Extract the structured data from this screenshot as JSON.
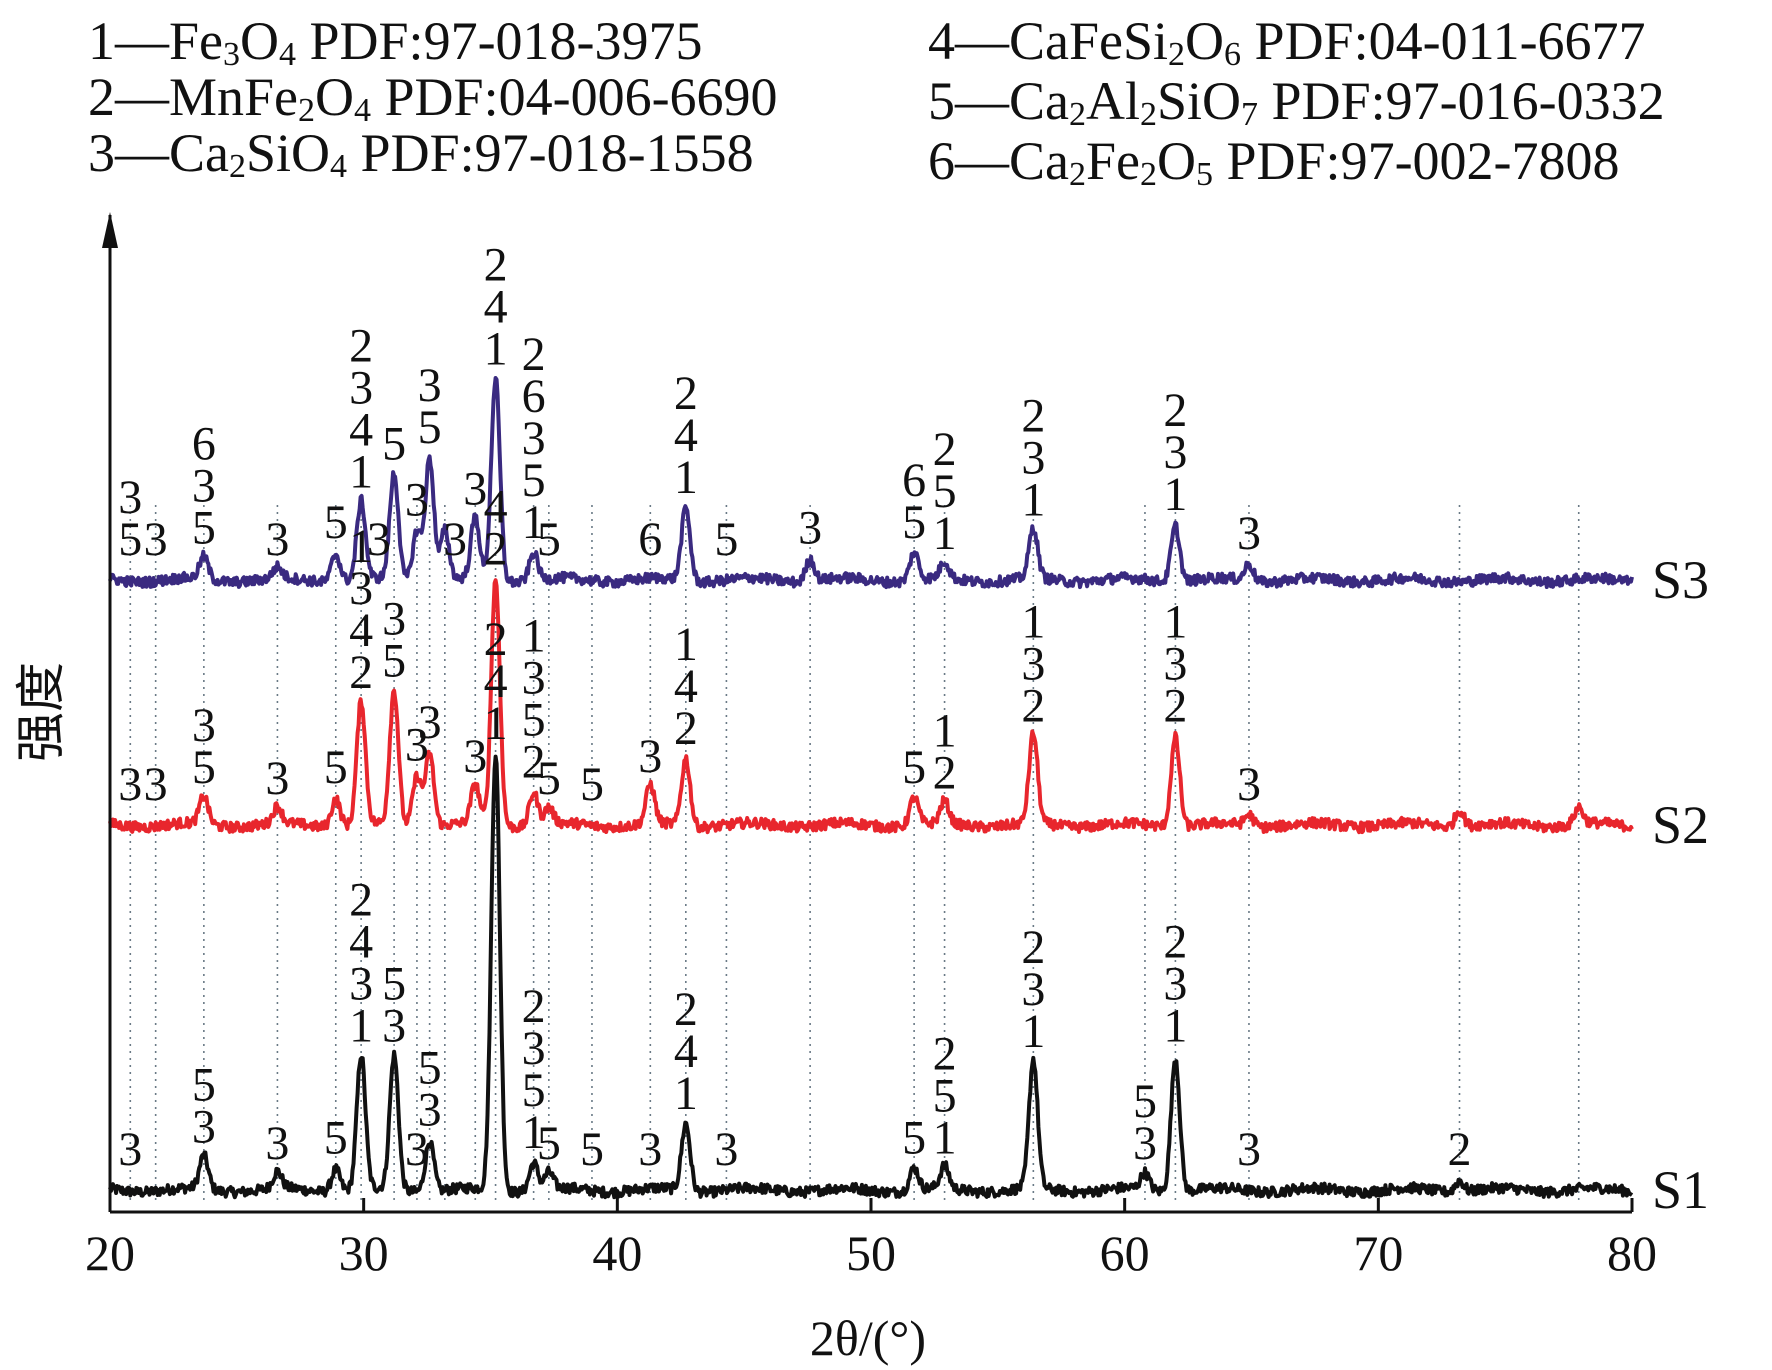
{
  "chart_data": {
    "type": "line",
    "xlabel": "2θ/(°)",
    "ylabel": "强度",
    "xlim": [
      20,
      80
    ],
    "xticks": [
      "20",
      "30",
      "40",
      "50",
      "60",
      "70",
      "80"
    ],
    "grid": false,
    "y_ticks_shown": false,
    "legend": [
      {
        "id": "1",
        "text": "1—Fe₃O₄ PDF:97-018-3975"
      },
      {
        "id": "2",
        "text": "2—MnFe₂O₄ PDF:04-006-6690"
      },
      {
        "id": "3",
        "text": "3—Ca₂SiO₄ PDF:97-018-1558"
      },
      {
        "id": "4",
        "text": "4—CaFeSi₂O₆ PDF:04-011-6677"
      },
      {
        "id": "5",
        "text": "5—Ca₂Al₂SiO₇ PDF:97-016-0332"
      },
      {
        "id": "6",
        "text": "6—Ca₂Fe₂O₅ PDF:97-002-7808"
      }
    ],
    "reference_lines_2theta": [
      20.8,
      21.8,
      23.7,
      26.6,
      28.9,
      29.9,
      31.2,
      32.1,
      32.6,
      33.2,
      34.4,
      35.2,
      36.7,
      37.3,
      39.0,
      41.3,
      42.7,
      44.3,
      47.6,
      51.7,
      52.9,
      56.4,
      60.8,
      62.0,
      64.9,
      73.2,
      77.9
    ],
    "series": [
      {
        "name": "S1",
        "color": "#111111",
        "peaks": [
          {
            "x": 23.7,
            "h": 0.06
          },
          {
            "x": 26.6,
            "h": 0.03
          },
          {
            "x": 28.9,
            "h": 0.04
          },
          {
            "x": 29.9,
            "h": 0.24
          },
          {
            "x": 31.2,
            "h": 0.24
          },
          {
            "x": 32.6,
            "h": 0.09
          },
          {
            "x": 35.2,
            "h": 0.78
          },
          {
            "x": 36.7,
            "h": 0.05
          },
          {
            "x": 37.3,
            "h": 0.03
          },
          {
            "x": 42.7,
            "h": 0.12
          },
          {
            "x": 51.7,
            "h": 0.04
          },
          {
            "x": 52.9,
            "h": 0.04
          },
          {
            "x": 56.4,
            "h": 0.23
          },
          {
            "x": 60.8,
            "h": 0.03
          },
          {
            "x": 62.0,
            "h": 0.24
          },
          {
            "x": 73.2,
            "h": 0.02
          }
        ],
        "annotations": [
          {
            "x": 20.8,
            "labels": [
              "3"
            ]
          },
          {
            "x": 23.7,
            "labels": [
              "5",
              "3"
            ]
          },
          {
            "x": 26.6,
            "labels": [
              "3"
            ]
          },
          {
            "x": 28.9,
            "labels": [
              "5"
            ]
          },
          {
            "x": 29.9,
            "labels": [
              "2",
              "4",
              "3",
              "1"
            ]
          },
          {
            "x": 31.2,
            "labels": [
              "5",
              "3"
            ]
          },
          {
            "x": 32.1,
            "labels": [
              "3"
            ]
          },
          {
            "x": 32.6,
            "labels": [
              "5",
              "3"
            ]
          },
          {
            "x": 35.2,
            "labels": [
              "2",
              "4",
              "1"
            ]
          },
          {
            "x": 36.7,
            "labels": [
              "2",
              "3",
              "5",
              "1"
            ]
          },
          {
            "x": 37.3,
            "labels": [
              "5"
            ]
          },
          {
            "x": 39.0,
            "labels": [
              "5"
            ]
          },
          {
            "x": 41.3,
            "labels": [
              "3"
            ]
          },
          {
            "x": 42.7,
            "labels": [
              "2",
              "4",
              "1"
            ]
          },
          {
            "x": 44.3,
            "labels": [
              "3"
            ]
          },
          {
            "x": 51.7,
            "labels": [
              "5"
            ]
          },
          {
            "x": 52.9,
            "labels": [
              "2",
              "5",
              "1"
            ]
          },
          {
            "x": 56.4,
            "labels": [
              "2",
              "3",
              "1"
            ]
          },
          {
            "x": 60.8,
            "labels": [
              "5",
              "3"
            ]
          },
          {
            "x": 62.0,
            "labels": [
              "2",
              "3",
              "1"
            ]
          },
          {
            "x": 64.9,
            "labels": [
              "3"
            ]
          },
          {
            "x": 73.2,
            "labels": [
              "2"
            ]
          }
        ]
      },
      {
        "name": "S2",
        "color": "#e8262d",
        "peaks": [
          {
            "x": 23.7,
            "h": 0.05
          },
          {
            "x": 26.6,
            "h": 0.03
          },
          {
            "x": 28.9,
            "h": 0.05
          },
          {
            "x": 29.9,
            "h": 0.22
          },
          {
            "x": 31.2,
            "h": 0.24
          },
          {
            "x": 32.1,
            "h": 0.09
          },
          {
            "x": 32.6,
            "h": 0.13
          },
          {
            "x": 34.4,
            "h": 0.07
          },
          {
            "x": 35.2,
            "h": 0.44
          },
          {
            "x": 36.7,
            "h": 0.06
          },
          {
            "x": 37.3,
            "h": 0.03
          },
          {
            "x": 41.3,
            "h": 0.07
          },
          {
            "x": 42.7,
            "h": 0.12
          },
          {
            "x": 51.7,
            "h": 0.05
          },
          {
            "x": 52.9,
            "h": 0.04
          },
          {
            "x": 56.4,
            "h": 0.16
          },
          {
            "x": 62.0,
            "h": 0.16
          },
          {
            "x": 64.9,
            "h": 0.02
          },
          {
            "x": 73.2,
            "h": 0.03
          },
          {
            "x": 77.9,
            "h": 0.03
          }
        ],
        "annotations": [
          {
            "x": 20.8,
            "labels": [
              "3"
            ]
          },
          {
            "x": 21.8,
            "labels": [
              "3"
            ]
          },
          {
            "x": 23.7,
            "labels": [
              "3",
              "5"
            ]
          },
          {
            "x": 26.6,
            "labels": [
              "3"
            ]
          },
          {
            "x": 28.9,
            "labels": [
              "5"
            ]
          },
          {
            "x": 29.9,
            "labels": [
              "1",
              "3",
              "4",
              "2"
            ]
          },
          {
            "x": 31.2,
            "labels": [
              "3",
              "5"
            ]
          },
          {
            "x": 32.1,
            "labels": [
              "3"
            ]
          },
          {
            "x": 32.6,
            "labels": [
              "3"
            ]
          },
          {
            "x": 34.4,
            "labels": [
              "3"
            ]
          },
          {
            "x": 35.2,
            "labels": [
              "4",
              "2"
            ]
          },
          {
            "x": 36.7,
            "labels": [
              "1",
              "3",
              "5",
              "2"
            ]
          },
          {
            "x": 37.3,
            "labels": [
              "5"
            ]
          },
          {
            "x": 39.0,
            "labels": [
              "5"
            ]
          },
          {
            "x": 41.3,
            "labels": [
              "3"
            ]
          },
          {
            "x": 42.7,
            "labels": [
              "1",
              "4",
              "2"
            ]
          },
          {
            "x": 51.7,
            "labels": [
              "5"
            ]
          },
          {
            "x": 52.9,
            "labels": [
              "1",
              "2"
            ]
          },
          {
            "x": 56.4,
            "labels": [
              "1",
              "3",
              "2"
            ]
          },
          {
            "x": 62.0,
            "labels": [
              "1",
              "3",
              "2"
            ]
          },
          {
            "x": 64.9,
            "labels": [
              "3"
            ]
          }
        ]
      },
      {
        "name": "S3",
        "color": "#3a2a80",
        "peaks": [
          {
            "x": 23.7,
            "h": 0.04
          },
          {
            "x": 26.6,
            "h": 0.02
          },
          {
            "x": 28.9,
            "h": 0.05
          },
          {
            "x": 29.9,
            "h": 0.14
          },
          {
            "x": 31.2,
            "h": 0.19
          },
          {
            "x": 32.1,
            "h": 0.09
          },
          {
            "x": 32.6,
            "h": 0.22
          },
          {
            "x": 33.2,
            "h": 0.09
          },
          {
            "x": 34.4,
            "h": 0.11
          },
          {
            "x": 35.2,
            "h": 0.36
          },
          {
            "x": 36.7,
            "h": 0.05
          },
          {
            "x": 42.7,
            "h": 0.13
          },
          {
            "x": 47.6,
            "h": 0.04
          },
          {
            "x": 51.7,
            "h": 0.05
          },
          {
            "x": 52.9,
            "h": 0.03
          },
          {
            "x": 56.4,
            "h": 0.09
          },
          {
            "x": 62.0,
            "h": 0.1
          },
          {
            "x": 64.9,
            "h": 0.03
          }
        ],
        "annotations": [
          {
            "x": 20.8,
            "labels": [
              "3",
              "5"
            ]
          },
          {
            "x": 21.8,
            "labels": [
              "3"
            ]
          },
          {
            "x": 23.7,
            "labels": [
              "6",
              "3",
              "5"
            ]
          },
          {
            "x": 26.6,
            "labels": [
              "3"
            ]
          },
          {
            "x": 28.9,
            "labels": [
              "5"
            ]
          },
          {
            "x": 29.9,
            "labels": [
              "2",
              "3",
              "4",
              "1"
            ]
          },
          {
            "x": 30.6,
            "labels": [
              "3"
            ]
          },
          {
            "x": 31.2,
            "labels": [
              "5"
            ]
          },
          {
            "x": 32.1,
            "labels": [
              "3"
            ]
          },
          {
            "x": 32.6,
            "labels": [
              "3",
              "5"
            ]
          },
          {
            "x": 33.6,
            "labels": [
              "3"
            ]
          },
          {
            "x": 34.4,
            "labels": [
              "3"
            ]
          },
          {
            "x": 35.2,
            "labels": [
              "2",
              "4",
              "1"
            ]
          },
          {
            "x": 36.7,
            "labels": [
              "2",
              "6",
              "3",
              "5",
              "1"
            ]
          },
          {
            "x": 37.3,
            "labels": [
              "5"
            ]
          },
          {
            "x": 41.3,
            "labels": [
              "6"
            ]
          },
          {
            "x": 42.7,
            "labels": [
              "2",
              "4",
              "1"
            ]
          },
          {
            "x": 44.3,
            "labels": [
              "5"
            ]
          },
          {
            "x": 47.6,
            "labels": [
              "3"
            ]
          },
          {
            "x": 51.7,
            "labels": [
              "6",
              "5"
            ]
          },
          {
            "x": 52.9,
            "labels": [
              "2",
              "5",
              "1"
            ]
          },
          {
            "x": 56.4,
            "labels": [
              "2",
              "3",
              "1"
            ]
          },
          {
            "x": 62.0,
            "labels": [
              "2",
              "3",
              "1"
            ]
          },
          {
            "x": 64.9,
            "labels": [
              "3"
            ]
          }
        ]
      }
    ]
  }
}
